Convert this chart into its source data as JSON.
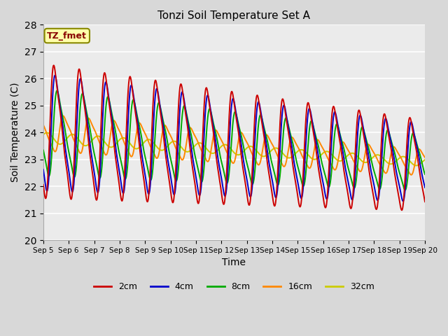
{
  "title": "Tonzi Soil Temperature Set A",
  "xlabel": "Time",
  "ylabel": "Soil Temperature (C)",
  "ylim": [
    20.0,
    28.0
  ],
  "yticks": [
    20.0,
    21.0,
    22.0,
    23.0,
    24.0,
    25.0,
    26.0,
    27.0,
    28.0
  ],
  "bg_color": "#d8d8d8",
  "plot_bg_color": "#ebebeb",
  "line_width": 1.4,
  "legend_colors": [
    "#cc0000",
    "#0000cc",
    "#00aa00",
    "#ff8800",
    "#cccc00"
  ],
  "legend_labels": [
    "2cm",
    "4cm",
    "8cm",
    "16cm",
    "32cm"
  ],
  "annotation_text": "TZ_fmet",
  "annotation_color": "#880000",
  "annotation_bbox_fc": "#ffffaa",
  "annotation_bbox_ec": "#888800"
}
